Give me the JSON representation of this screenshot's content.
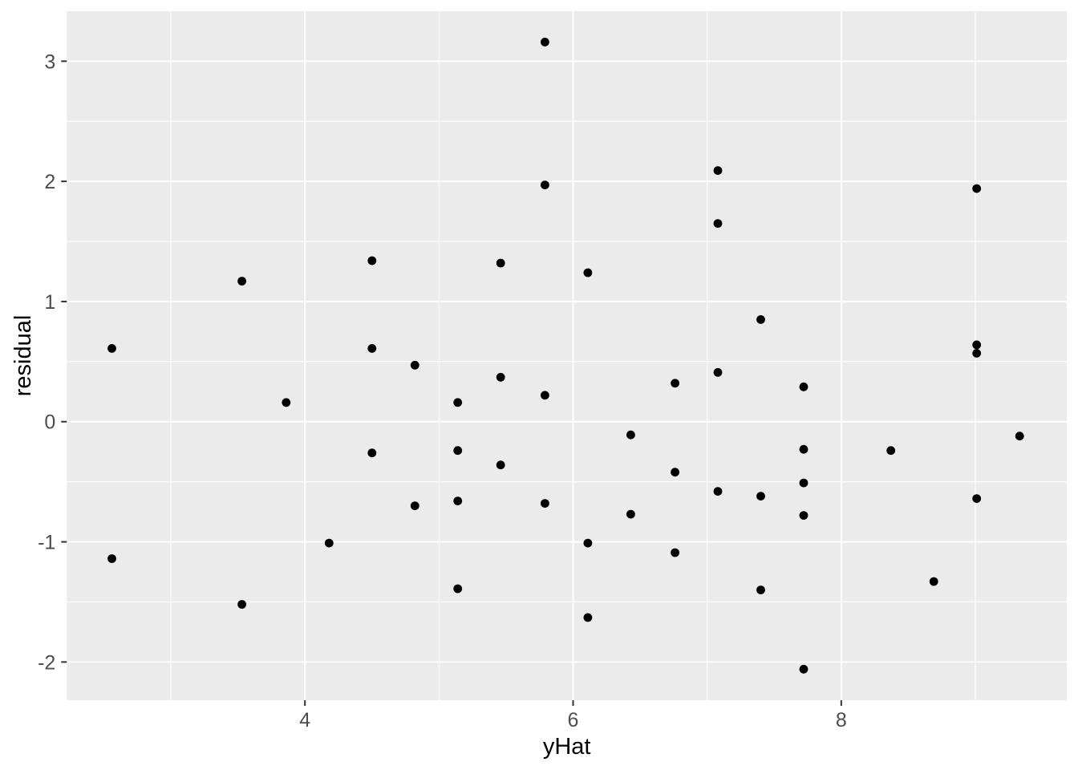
{
  "chart_data": {
    "type": "scatter",
    "title": "",
    "xlabel": "yHat",
    "ylabel": "residual",
    "xlim": [
      2.224,
      9.682
    ],
    "ylim": [
      -2.318,
      3.416
    ],
    "x_major_ticks": [
      4,
      6,
      8
    ],
    "x_tick_labels": [
      "4",
      "6",
      "8"
    ],
    "y_major_ticks": [
      3,
      2,
      1,
      0,
      -1,
      -2
    ],
    "y_tick_labels": [
      "3",
      "2",
      "1",
      "0",
      "-1",
      "-2"
    ],
    "x_minor_gridlines": [
      3,
      5,
      7,
      9
    ],
    "y_minor_gridlines": [
      2.5,
      1.5,
      0.5,
      -0.5,
      -1.5
    ],
    "grid": true,
    "legend_position": "none",
    "points": [
      [
        2.56,
        0.61
      ],
      [
        2.56,
        -1.14
      ],
      [
        3.53,
        1.17
      ],
      [
        3.53,
        -1.52
      ],
      [
        3.86,
        0.16
      ],
      [
        4.18,
        -1.01
      ],
      [
        4.5,
        1.34
      ],
      [
        4.5,
        0.61
      ],
      [
        4.5,
        -0.26
      ],
      [
        4.82,
        0.47
      ],
      [
        4.82,
        -0.7
      ],
      [
        5.14,
        0.16
      ],
      [
        5.14,
        -0.24
      ],
      [
        5.14,
        -0.66
      ],
      [
        5.14,
        -1.39
      ],
      [
        5.46,
        1.32
      ],
      [
        5.46,
        0.37
      ],
      [
        5.46,
        -0.36
      ],
      [
        5.79,
        3.16
      ],
      [
        5.79,
        1.97
      ],
      [
        5.79,
        0.22
      ],
      [
        5.79,
        -0.68
      ],
      [
        6.11,
        1.24
      ],
      [
        6.11,
        -1.01
      ],
      [
        6.11,
        -1.63
      ],
      [
        6.43,
        -0.11
      ],
      [
        6.43,
        -0.77
      ],
      [
        6.76,
        0.32
      ],
      [
        6.76,
        -0.42
      ],
      [
        6.76,
        -1.09
      ],
      [
        7.08,
        2.09
      ],
      [
        7.08,
        1.65
      ],
      [
        7.08,
        0.41
      ],
      [
        7.08,
        -0.58
      ],
      [
        7.4,
        0.85
      ],
      [
        7.4,
        -0.62
      ],
      [
        7.4,
        -1.4
      ],
      [
        7.72,
        0.29
      ],
      [
        7.72,
        -0.23
      ],
      [
        7.72,
        -0.51
      ],
      [
        7.72,
        -0.78
      ],
      [
        7.72,
        -2.06
      ],
      [
        8.37,
        -0.24
      ],
      [
        8.69,
        -1.33
      ],
      [
        9.01,
        1.94
      ],
      [
        9.01,
        0.64
      ],
      [
        9.01,
        0.57
      ],
      [
        9.01,
        -0.64
      ],
      [
        9.33,
        -0.12
      ]
    ]
  },
  "style": {
    "background": "#FFFFFF",
    "panel_background": "#EBEBEB",
    "grid_color": "#FFFFFF",
    "point_color": "#000000",
    "tick_mark_color": "#333333",
    "tick_label_color": "#4D4D4D",
    "axis_title_color": "#000000"
  }
}
